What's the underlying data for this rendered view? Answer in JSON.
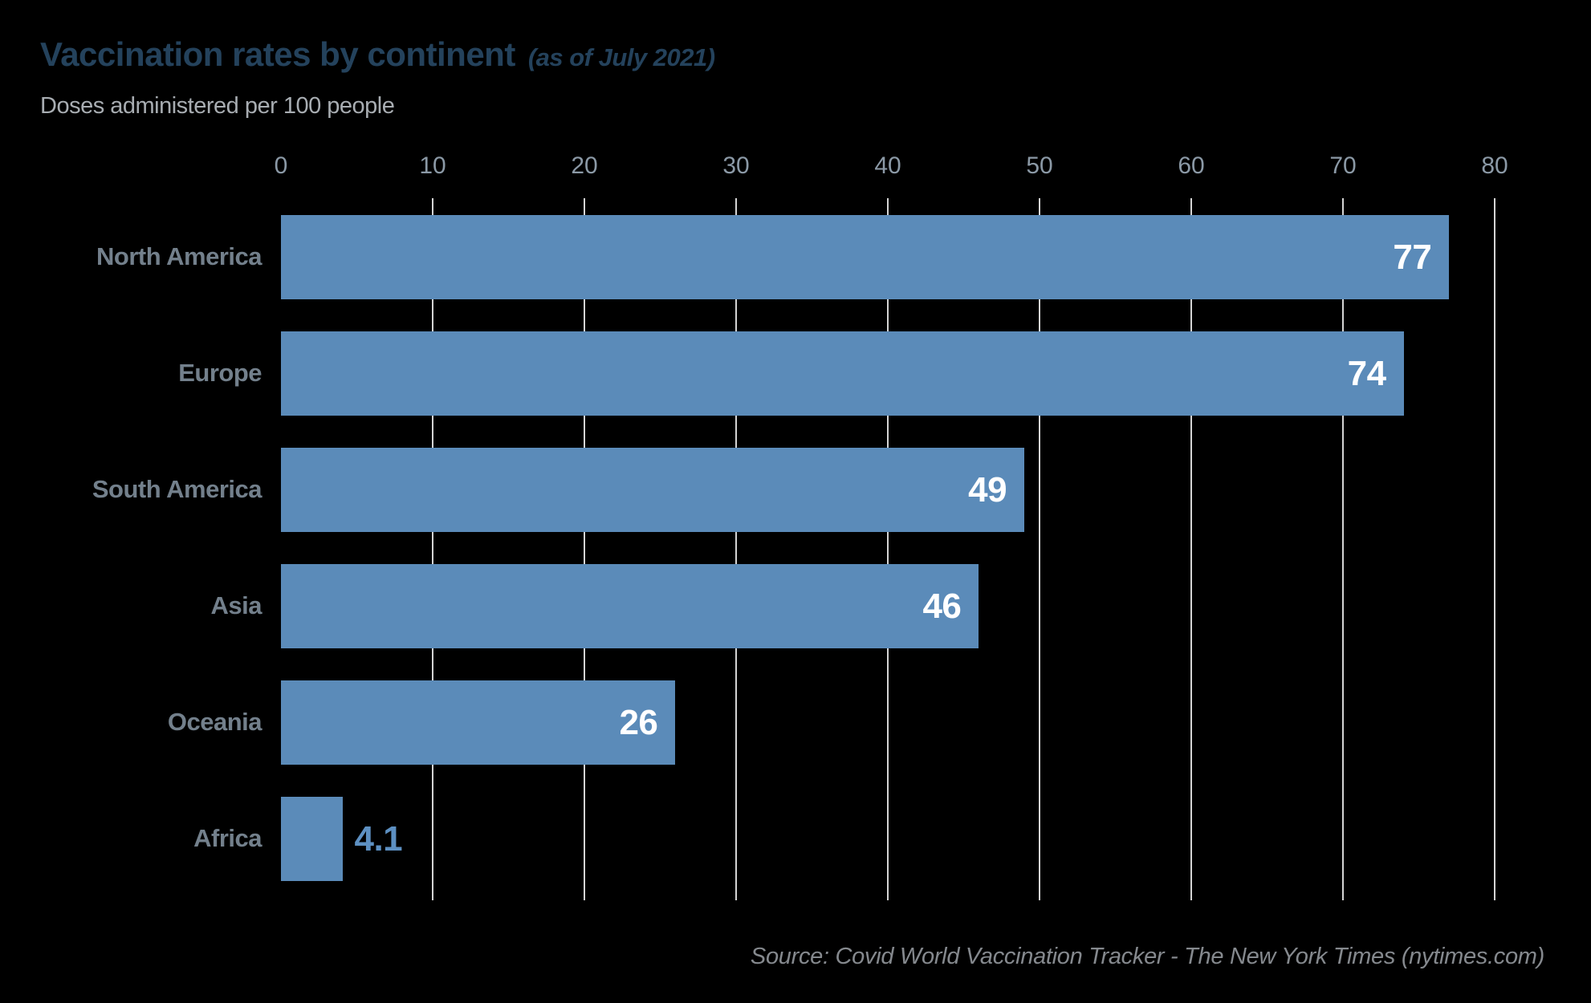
{
  "header": {
    "title": "Vaccination rates by continent",
    "qualifier": "(as of July 2021)",
    "subtitle": "Doses administered per 100 people"
  },
  "footer": {
    "source": "Source: Covid World Vaccination Tracker - The New York Times (nytimes.com)"
  },
  "colors": {
    "background": "#000000",
    "bar": "#5b8bb9",
    "title": "#24425c",
    "subtitle": "#a8adb2",
    "category_label": "#73808c",
    "axis_tick_label": "#8b99a6",
    "gridline": "#d4d4d4",
    "value_inside": "#ffffff",
    "value_outside": "#5d90c2",
    "source": "#85898e"
  },
  "chart_data": {
    "type": "bar",
    "orientation": "horizontal",
    "title": "Vaccination rates by continent (as of July 2021)",
    "xlabel": "Doses administered per 100 people",
    "ylabel": "",
    "categories": [
      "North America",
      "Europe",
      "South America",
      "Asia",
      "Oceania",
      "Africa"
    ],
    "values": [
      77,
      74,
      49,
      46,
      26,
      4.1
    ],
    "value_labels": [
      "77",
      "74",
      "49",
      "46",
      "26",
      "4.1"
    ],
    "x_ticks": [
      0,
      10,
      20,
      30,
      40,
      50,
      60,
      70,
      80
    ],
    "xlim": [
      0,
      80
    ],
    "grid": "vertical",
    "gridline_ticks": [
      10,
      20,
      30,
      40,
      50,
      60,
      70,
      80
    ],
    "legend": "none",
    "value_label_placement": "inside-end; outside-end when bar too short",
    "source": "Source: Covid World Vaccination Tracker - The New York Times (nytimes.com)"
  }
}
